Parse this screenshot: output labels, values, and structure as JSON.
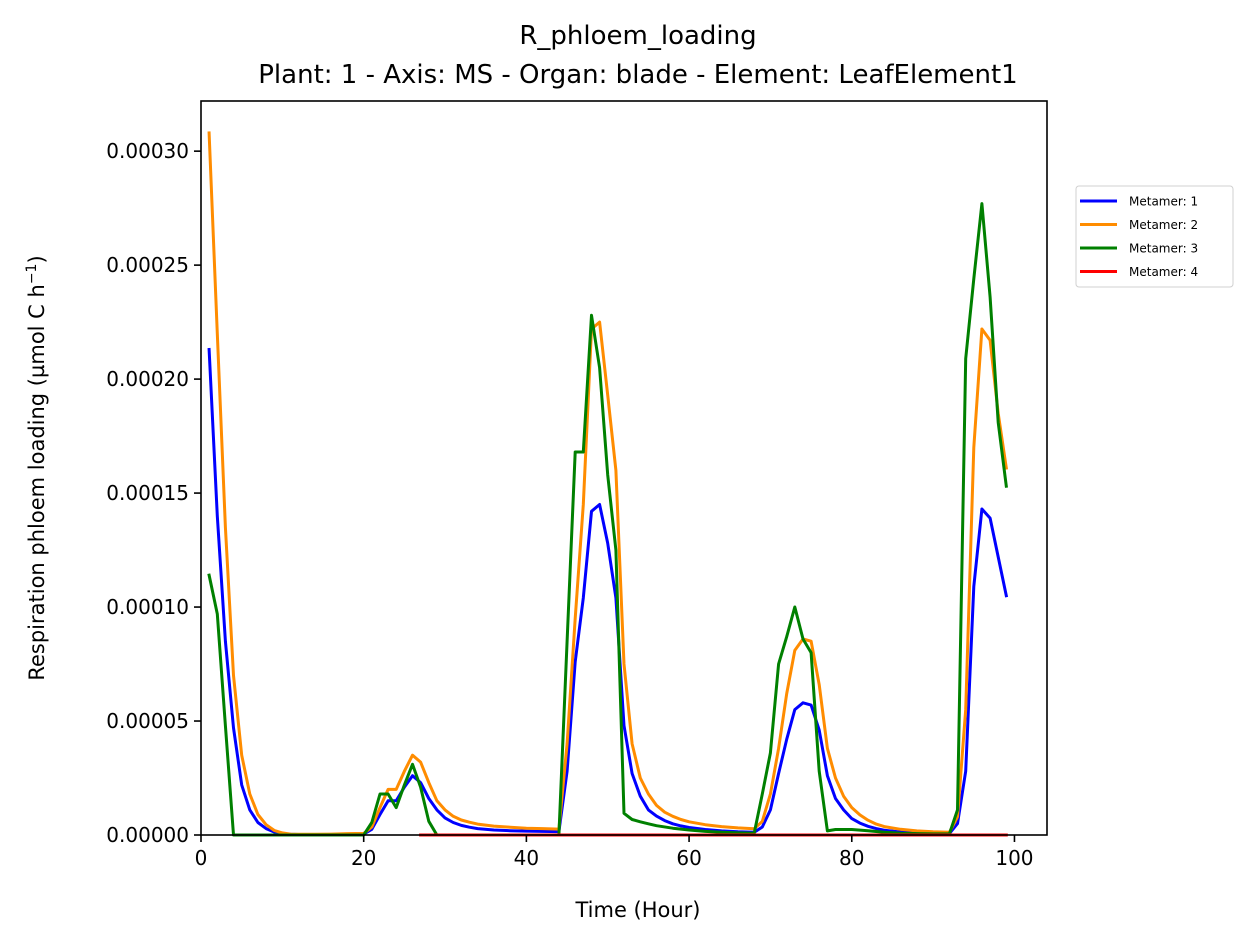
{
  "chart_data": {
    "type": "line",
    "title": "R_phloem_loading",
    "subtitle": "Plant: 1 - Axis: MS - Organ: blade - Element: LeafElement1",
    "xlabel": "Time (Hour)",
    "ylabel_main": "Respiration phloem loading (µmol C h",
    "ylabel_exp": "−1",
    "ylabel_close": ")",
    "xlim": [
      0,
      104
    ],
    "ylim": [
      0,
      0.000322
    ],
    "xticks": [
      0,
      20,
      40,
      60,
      80,
      100
    ],
    "xtick_labels": [
      "0",
      "20",
      "40",
      "60",
      "80",
      "100"
    ],
    "yticks": [
      0,
      5e-05,
      0.0001,
      0.00015,
      0.0002,
      0.00025,
      0.0003
    ],
    "ytick_labels": [
      "0.00000",
      "0.00005",
      "0.00010",
      "0.00015",
      "0.00020",
      "0.00025",
      "0.00030"
    ],
    "grid": false,
    "legend_position": "outside-right",
    "series": [
      {
        "name": "Metamer: 1",
        "color": "#0000ff",
        "x": [
          1,
          2,
          3,
          4,
          5,
          6,
          7,
          8,
          9,
          10,
          11,
          12,
          14,
          16,
          18,
          20,
          21,
          22,
          23,
          24,
          25,
          26,
          27,
          28,
          29,
          30,
          31,
          32,
          33,
          34,
          36,
          38,
          40,
          42,
          44,
          45,
          46,
          47,
          48,
          49,
          50,
          51,
          52,
          53,
          54,
          55,
          56,
          57,
          58,
          59,
          60,
          62,
          64,
          66,
          68,
          69,
          70,
          71,
          72,
          73,
          74,
          75,
          76,
          77,
          78,
          79,
          80,
          81,
          82,
          83,
          84,
          86,
          88,
          90,
          92,
          93,
          94,
          95,
          96,
          97,
          98,
          99
        ],
        "y": [
          0.000213,
          0.00014,
          8.5e-05,
          4.7e-05,
          2.2e-05,
          1.1e-05,
          5.5e-06,
          2.8e-06,
          1.3e-06,
          6e-07,
          3e-07,
          2e-07,
          2e-07,
          2e-07,
          3e-07,
          4e-07,
          2.5e-06,
          9e-06,
          1.5e-05,
          1.5e-05,
          2.1e-05,
          2.6e-05,
          2.3e-05,
          1.6e-05,
          1.1e-05,
          7.5e-06,
          5.5e-06,
          4.2e-06,
          3.4e-06,
          2.8e-06,
          2.2e-06,
          1.9e-06,
          1.7e-06,
          1.6e-06,
          1.5e-06,
          2.8e-05,
          7.6e-05,
          0.000104,
          0.000142,
          0.000145,
          0.000128,
          0.000104,
          4.8e-05,
          2.7e-05,
          1.7e-05,
          1.1e-05,
          8.3e-06,
          6.3e-06,
          4.9e-06,
          4e-06,
          3.3e-06,
          2.4e-06,
          1.8e-06,
          1.4e-06,
          1.2e-06,
          3.5e-06,
          1.1e-05,
          2.7e-05,
          4.2e-05,
          5.5e-05,
          5.8e-05,
          5.7e-05,
          4.6e-05,
          2.6e-05,
          1.6e-05,
          1.1e-05,
          7.2e-06,
          5.2e-06,
          3.8e-06,
          2.8e-06,
          2.1e-06,
          1.3e-06,
          9e-07,
          7e-07,
          6e-07,
          5e-06,
          2.8e-05,
          0.000109,
          0.000143,
          0.000139,
          0.000122,
          0.000105
        ]
      },
      {
        "name": "Metamer: 2",
        "color": "#ff8c00",
        "x": [
          1,
          2,
          3,
          4,
          5,
          6,
          7,
          8,
          9,
          10,
          11,
          12,
          14,
          16,
          18,
          20,
          21,
          22,
          23,
          24,
          25,
          26,
          27,
          28,
          29,
          30,
          31,
          32,
          33,
          34,
          36,
          38,
          40,
          42,
          44,
          45,
          46,
          47,
          48,
          49,
          50,
          51,
          52,
          53,
          54,
          55,
          56,
          57,
          58,
          59,
          60,
          62,
          64,
          66,
          68,
          69,
          70,
          71,
          72,
          73,
          74,
          75,
          76,
          77,
          78,
          79,
          80,
          81,
          82,
          83,
          84,
          86,
          88,
          90,
          92,
          93,
          94,
          95,
          96,
          97,
          98,
          99
        ],
        "y": [
          0.000308,
          0.00022,
          0.000135,
          7e-05,
          3.5e-05,
          1.8e-05,
          9e-06,
          4.5e-06,
          2e-06,
          9e-07,
          4e-07,
          3e-07,
          3e-07,
          4e-07,
          6e-07,
          7e-07,
          3.5e-06,
          1.2e-05,
          2e-05,
          2e-05,
          2.8e-05,
          3.5e-05,
          3.2e-05,
          2.3e-05,
          1.5e-05,
          1.1e-05,
          8.2e-06,
          6.6e-06,
          5.6e-06,
          4.8e-06,
          3.9e-06,
          3.4e-06,
          3e-06,
          2.8e-06,
          2.6e-06,
          4e-05,
          9.5e-05,
          0.000145,
          0.000222,
          0.000225,
          0.000193,
          0.00016,
          7.5e-05,
          4e-05,
          2.5e-05,
          1.8e-05,
          1.3e-05,
          1e-05,
          8.2e-06,
          6.8e-06,
          5.8e-06,
          4.5e-06,
          3.7e-06,
          3.1e-06,
          2.7e-06,
          6e-06,
          1.8e-05,
          3.8e-05,
          6.2e-05,
          8.1e-05,
          8.6e-05,
          8.5e-05,
          6.6e-05,
          3.8e-05,
          2.5e-05,
          1.7e-05,
          1.2e-05,
          8.8e-06,
          6.5e-06,
          4.8e-06,
          3.7e-06,
          2.5e-06,
          1.8e-06,
          1.4e-06,
          1.2e-06,
          8e-06,
          5.5e-05,
          0.00017,
          0.000222,
          0.000217,
          0.000185,
          0.000161
        ]
      },
      {
        "name": "Metamer: 3",
        "color": "#008000",
        "x": [
          1,
          2,
          3,
          4,
          5,
          10,
          15,
          20,
          21,
          22,
          23,
          24,
          25,
          26,
          27,
          28,
          29,
          30,
          35,
          40,
          44,
          45,
          46,
          47,
          48,
          49,
          50,
          51,
          52,
          53,
          54,
          55,
          56,
          58,
          60,
          62,
          64,
          66,
          68,
          69,
          70,
          71,
          72,
          73,
          74,
          75,
          76,
          77,
          78,
          80,
          82,
          84,
          86,
          88,
          90,
          91,
          92,
          93,
          94,
          95,
          96,
          97,
          98,
          99
        ],
        "y": [
          0.000114,
          9.7e-05,
          4.8e-05,
          0,
          0,
          0,
          0,
          0,
          5.5e-06,
          1.8e-05,
          1.8e-05,
          1.2e-05,
          2.2e-05,
          3.1e-05,
          2.1e-05,
          6e-06,
          0,
          0,
          0,
          0,
          0,
          8.5e-05,
          0.000168,
          0.000168,
          0.000228,
          0.000205,
          0.000158,
          0.000125,
          9.5e-06,
          6.8e-06,
          5.8e-06,
          4.9e-06,
          4.1e-06,
          3e-06,
          2.2e-06,
          1.6e-06,
          1.2e-06,
          9e-07,
          8e-07,
          1.8e-05,
          3.6e-05,
          7.5e-05,
          8.7e-05,
          0.0001,
          8.6e-05,
          8e-05,
          2.8e-05,
          1.8e-06,
          2.4e-06,
          2.4e-06,
          1.9e-06,
          1.2e-06,
          8e-07,
          6e-07,
          5e-07,
          5e-07,
          5e-07,
          1.1e-05,
          0.000209,
          0.000244,
          0.000277,
          0.000236,
          0.000181,
          0.000153
        ]
      },
      {
        "name": "Metamer: 4",
        "color": "#ff0000",
        "x": [
          27,
          99
        ],
        "y": [
          0,
          0
        ]
      }
    ]
  }
}
